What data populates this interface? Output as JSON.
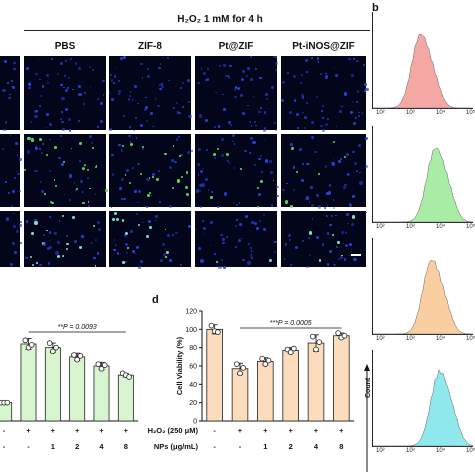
{
  "panel_a": {
    "condition_label": "H₂O₂ 1 mM for 4 h",
    "group_labels": [
      "PBS",
      "ZIF-8",
      "Pt@ZIF",
      "Pt-iNOS@ZIF"
    ]
  },
  "panel_b": {
    "letter": "b",
    "y_label": "Count",
    "x_ticks": [
      "10²",
      "10³",
      "10⁴",
      "10⁵"
    ],
    "histogram_colors": [
      "#f4a7a3",
      "#a8eca6",
      "#f9cfa2",
      "#8fe8ec"
    ]
  },
  "panel_d": {
    "letter": "d"
  },
  "chart_data": [
    {
      "type": "bar",
      "title": "",
      "ylabel": "",
      "categories": [
        "-",
        "+",
        "+",
        "+",
        "+",
        "+"
      ],
      "row_h2o2": [
        "-",
        "+",
        "+",
        "+",
        "+",
        "+"
      ],
      "row_nps": [
        "-",
        "-",
        "1",
        "2",
        "4",
        "8"
      ],
      "values": [
        20,
        84,
        80,
        70,
        60,
        50
      ],
      "points": [
        [
          20,
          20,
          20
        ],
        [
          88,
          80,
          83
        ],
        [
          85,
          76,
          80
        ],
        [
          72,
          67,
          71
        ],
        [
          62,
          57,
          61
        ],
        [
          52,
          50,
          48
        ]
      ],
      "errors": [
        2,
        6,
        5,
        4,
        4,
        2
      ],
      "ylim": [
        0,
        120
      ],
      "bar_color": "#d8f5cf",
      "significance": {
        "from": 1,
        "to": 5,
        "text": "**P = 0.0093"
      }
    },
    {
      "type": "bar",
      "title": "",
      "ylabel": "Cell Viability (%)",
      "yticks": [
        "0",
        "20",
        "40",
        "60",
        "80",
        "100",
        "120"
      ],
      "ylim": [
        0,
        120
      ],
      "categories": [
        "-",
        "+",
        "+",
        "+",
        "+",
        "+"
      ],
      "row_h2o2_label": "H₂O₂ (250 μM)",
      "row_h2o2": [
        "-",
        "+",
        "+",
        "+",
        "+",
        "+"
      ],
      "row_nps_label": "NPs (μg/mL)",
      "row_nps": [
        "-",
        "-",
        "1",
        "2",
        "4",
        "8"
      ],
      "values": [
        100,
        57,
        65,
        77,
        85,
        93
      ],
      "points": [
        [
          104,
          98,
          97
        ],
        [
          62,
          52,
          58
        ],
        [
          68,
          62,
          66
        ],
        [
          78,
          75,
          79
        ],
        [
          92,
          78,
          86
        ],
        [
          96,
          91,
          93
        ]
      ],
      "errors": [
        5,
        6,
        4,
        3,
        9,
        3
      ],
      "bar_color": "#fbdcbd",
      "significance": {
        "from": 1,
        "to": 5,
        "text": "***P = 0.0005"
      }
    }
  ]
}
